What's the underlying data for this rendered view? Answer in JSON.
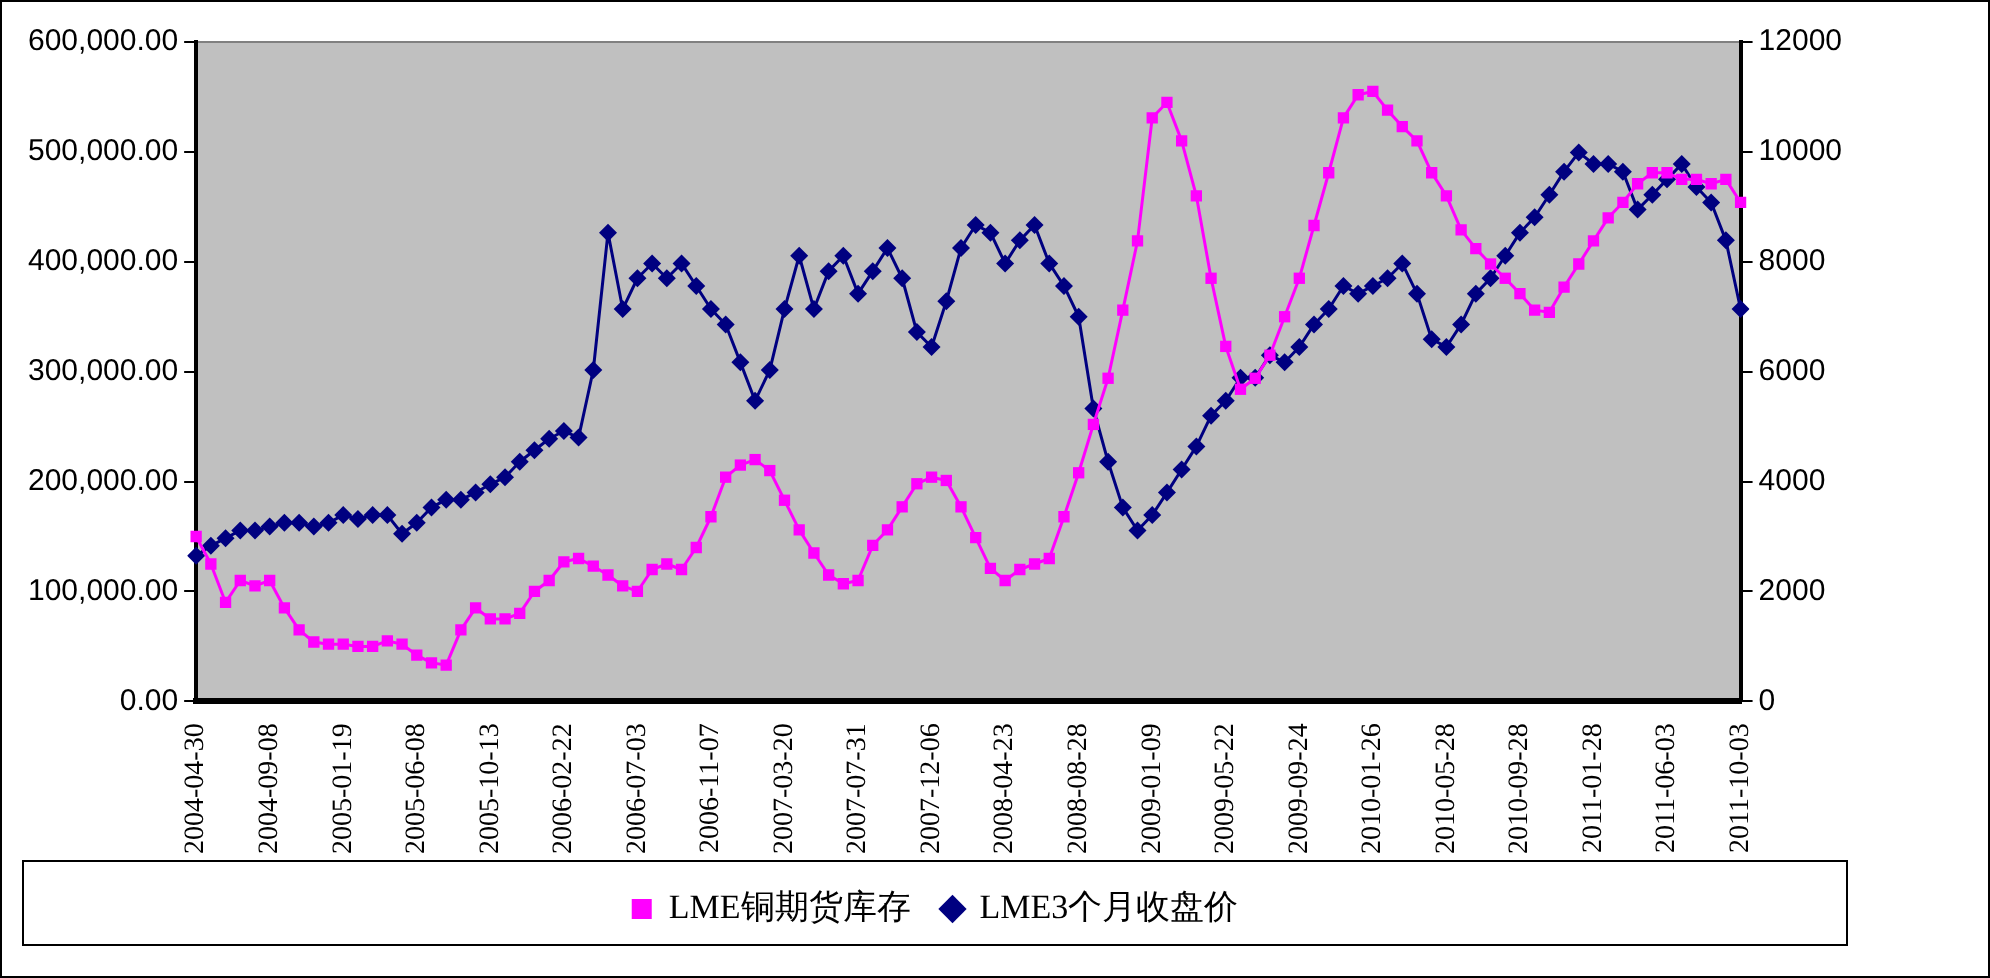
{
  "chart_data": {
    "type": "line",
    "categories": [
      "2004-04-30",
      null,
      null,
      null,
      null,
      "2004-09-08",
      null,
      null,
      null,
      null,
      "2005-01-19",
      null,
      null,
      null,
      null,
      "2005-06-08",
      null,
      null,
      null,
      null,
      "2005-10-13",
      null,
      null,
      null,
      null,
      "2006-02-22",
      null,
      null,
      null,
      null,
      "2006-07-03",
      null,
      null,
      null,
      null,
      "2006-11-07",
      null,
      null,
      null,
      null,
      "2007-03-20",
      null,
      null,
      null,
      null,
      "2007-07-31",
      null,
      null,
      null,
      null,
      "2007-12-06",
      null,
      null,
      null,
      null,
      "2008-04-23",
      null,
      null,
      null,
      null,
      "2008-08-28",
      null,
      null,
      null,
      null,
      "2009-01-09",
      null,
      null,
      null,
      null,
      "2009-05-22",
      null,
      null,
      null,
      null,
      "2009-09-24",
      null,
      null,
      null,
      null,
      "2010-01-26",
      null,
      null,
      null,
      null,
      "2010-05-28",
      null,
      null,
      null,
      null,
      "2010-09-28",
      null,
      null,
      null,
      null,
      "2011-01-28",
      null,
      null,
      null,
      null,
      "2011-06-03",
      null,
      null,
      null,
      null,
      "2011-10-03"
    ],
    "series": [
      {
        "name": "LME铜期货库存",
        "color": "#ff00ff",
        "marker": "square",
        "values": [
          150000,
          125000,
          90000,
          110000,
          105000,
          110000,
          85000,
          65000,
          54000,
          52000,
          52000,
          50000,
          50000,
          55000,
          52000,
          42000,
          35000,
          33000,
          65000,
          85000,
          75000,
          75000,
          80000,
          100000,
          110000,
          127000,
          130000,
          123000,
          115000,
          105000,
          100000,
          120000,
          125000,
          120000,
          140000,
          168000,
          204000,
          215000,
          220000,
          210000,
          183000,
          156000,
          135000,
          115000,
          107000,
          110000,
          142000,
          156000,
          177000,
          198000,
          204000,
          201000,
          177000,
          149000,
          121000,
          110000,
          120000,
          125000,
          130000,
          168000,
          208000,
          252000,
          294000,
          356000,
          419000,
          531000,
          545000,
          510000,
          460000,
          385000,
          323000,
          284000,
          294000,
          315000,
          350000,
          385000,
          433000,
          481000,
          531000,
          552000,
          555000,
          538000,
          523000,
          510000,
          481000,
          460000,
          429000,
          412000,
          398000,
          385000,
          371000,
          356000,
          354000,
          377000,
          398000,
          419000,
          440000,
          454000,
          471000,
          481000,
          481000,
          475000,
          475000,
          471000,
          475000,
          454000
        ]
      },
      {
        "name": "LME3个月收盘价",
        "color": "#000080",
        "marker": "diamond",
        "axis": "y2",
        "values": [
          2650,
          2830,
          2970,
          3110,
          3110,
          3180,
          3250,
          3250,
          3180,
          3250,
          3390,
          3320,
          3390,
          3390,
          3050,
          3250,
          3530,
          3670,
          3670,
          3800,
          3950,
          4080,
          4360,
          4570,
          4780,
          4920,
          4800,
          6030,
          8530,
          7140,
          7700,
          7970,
          7700,
          7970,
          7560,
          7140,
          6860,
          6170,
          5470,
          6030,
          7140,
          8110,
          7140,
          7830,
          8110,
          7420,
          7830,
          8250,
          7700,
          6720,
          6450,
          7280,
          8250,
          8670,
          8530,
          7970,
          8390,
          8670,
          7970,
          7560,
          7000,
          5330,
          4360,
          3530,
          3110,
          3390,
          3800,
          4220,
          4640,
          5200,
          5470,
          5890,
          5890,
          6300,
          6170,
          6450,
          6860,
          7140,
          7560,
          7420,
          7560,
          7700,
          7970,
          7420,
          6590,
          6450,
          6860,
          7420,
          7700,
          8110,
          8530,
          8810,
          9220,
          9640,
          9990,
          9780,
          9780,
          9640,
          8950,
          9220,
          9500,
          9780,
          9360,
          9080,
          8390,
          7140
        ]
      }
    ],
    "ylim": [
      0,
      600000
    ],
    "yticks": [
      {
        "value": 0,
        "label": "0.00"
      },
      {
        "value": 100000,
        "label": "100,000.00"
      },
      {
        "value": 200000,
        "label": "200,000.00"
      },
      {
        "value": 300000,
        "label": "300,000.00"
      },
      {
        "value": 400000,
        "label": "400,000.00"
      },
      {
        "value": 500000,
        "label": "500,000.00"
      },
      {
        "value": 600000,
        "label": "600,000.00"
      }
    ],
    "y2lim": [
      0,
      12000
    ],
    "y2ticks": [
      0,
      2000,
      4000,
      6000,
      8000,
      10000,
      12000
    ],
    "legend": "bottom",
    "grid": false,
    "line_style": "solid"
  }
}
